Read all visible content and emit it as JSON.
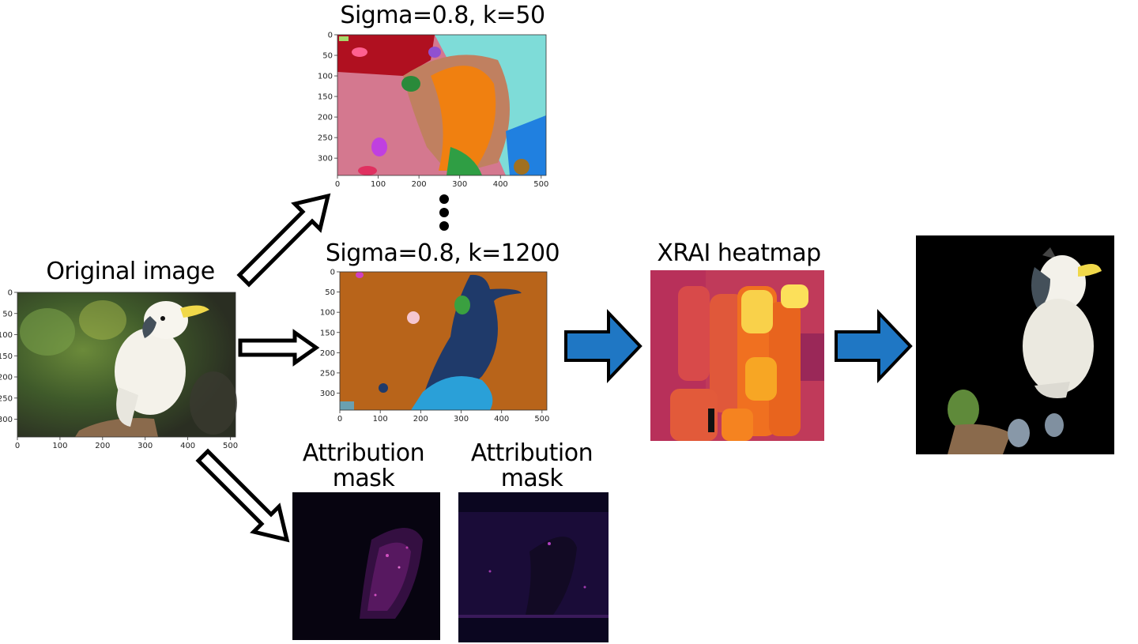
{
  "titles": {
    "original": "Original image",
    "seg_top": "Sigma=0.8, k=50",
    "seg_mid": "Sigma=0.8, k=1200",
    "xrai": "XRAI heatmap",
    "attr1_line1": "Attribution",
    "attr1_line2": "mask",
    "attr2_line1": "Attribution",
    "attr2_line2": "mask"
  },
  "axes": {
    "original": {
      "x_ticks": [
        "0",
        "100",
        "200",
        "300",
        "400",
        "500"
      ],
      "y_ticks": [
        "0",
        "50",
        "100",
        "150",
        "200",
        "250",
        "300"
      ]
    },
    "seg_top": {
      "x_ticks": [
        "0",
        "100",
        "200",
        "300",
        "400",
        "500"
      ],
      "y_ticks": [
        "0",
        "50",
        "100",
        "150",
        "200",
        "250",
        "300"
      ]
    },
    "seg_mid": {
      "x_ticks": [
        "0",
        "100",
        "200",
        "300",
        "400",
        "500"
      ],
      "y_ticks": [
        "0",
        "50",
        "100",
        "150",
        "200",
        "250",
        "300"
      ]
    }
  },
  "colors": {
    "outline_arrow": "#000000",
    "blue_arrow": "#1f77c4",
    "dots": "#000000"
  },
  "icons": {
    "ellipsis": "vertical-dots"
  }
}
